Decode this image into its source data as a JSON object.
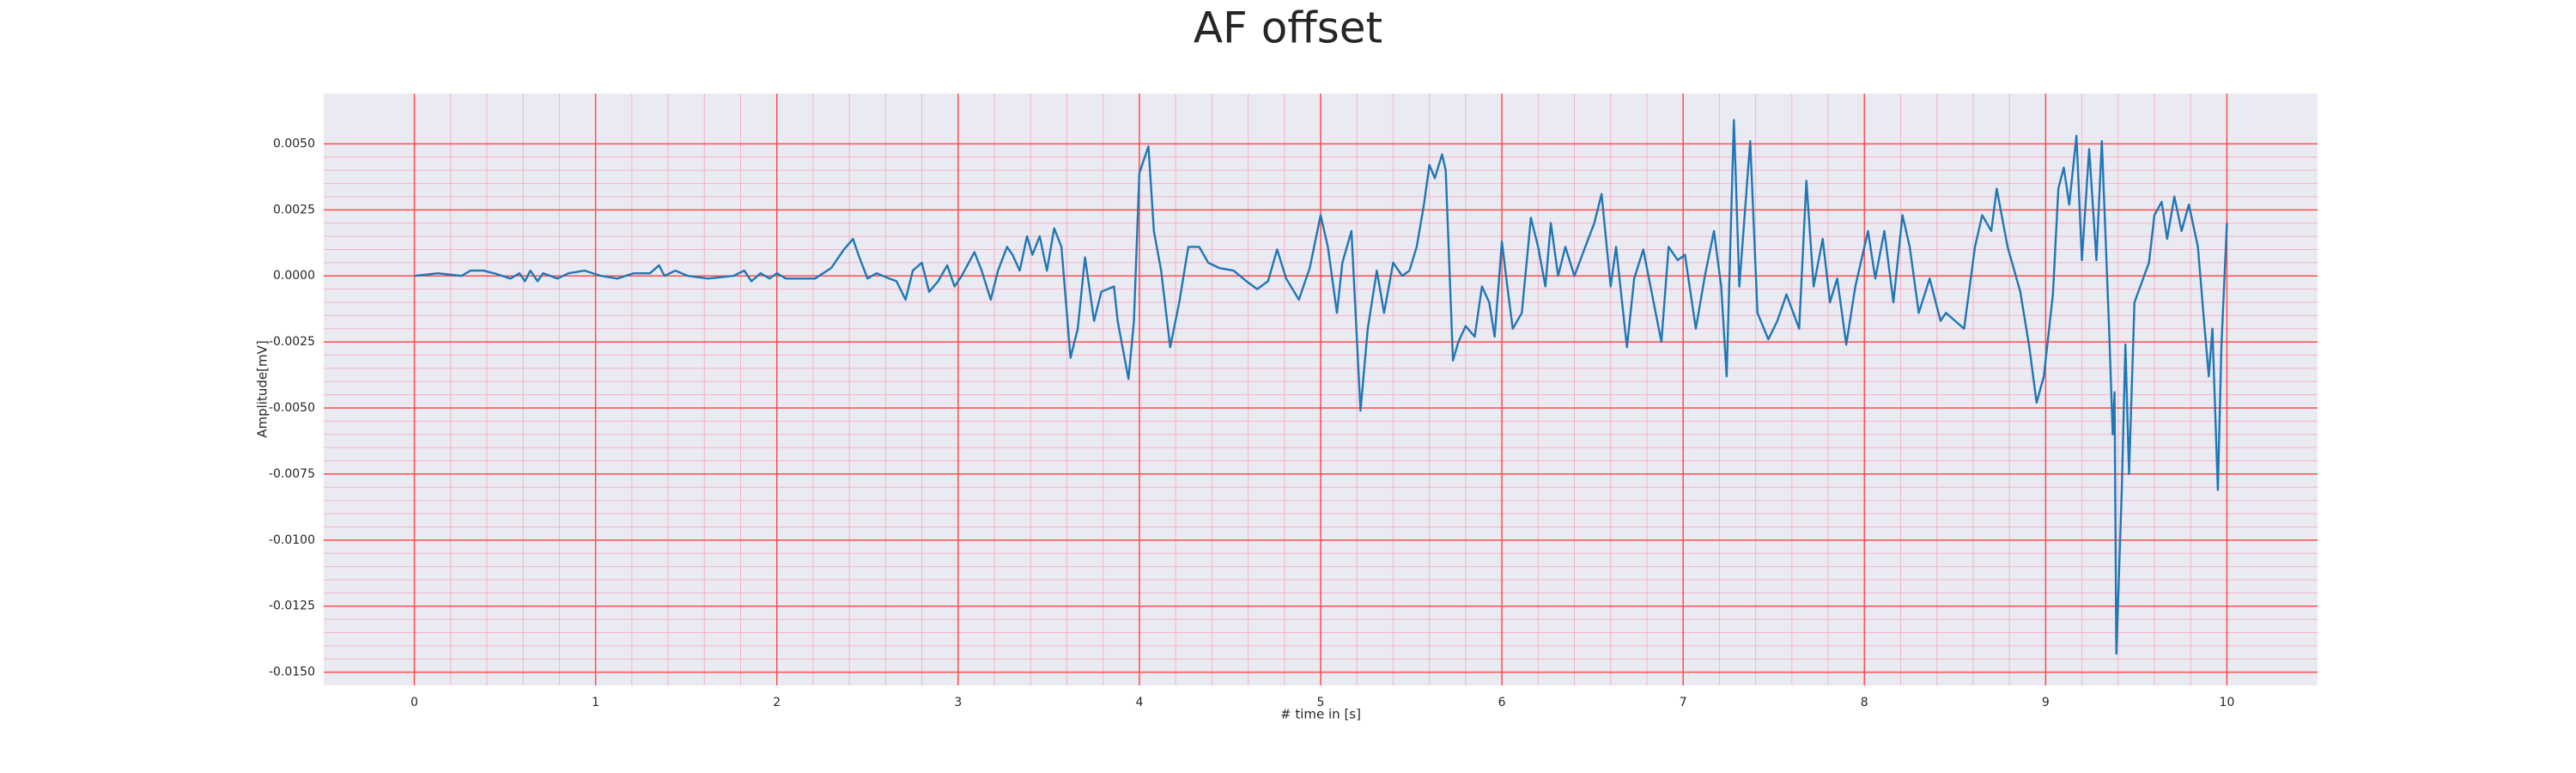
{
  "chart_data": {
    "type": "line",
    "title": "AF offset",
    "xlabel": "# time in [s]",
    "ylabel": "Amplitude[mV]",
    "xlim": [
      -0.5,
      10.5
    ],
    "ylim": [
      -0.0155,
      0.0069
    ],
    "xticks": [
      0,
      1,
      2,
      3,
      4,
      5,
      6,
      7,
      8,
      9,
      10
    ],
    "yticks": [
      {
        "value": 0.005,
        "label": "0.0050"
      },
      {
        "value": 0.0025,
        "label": "0.0025"
      },
      {
        "value": 0,
        "label": "0.0000"
      },
      {
        "value": -0.0025,
        "label": "-0.0025"
      },
      {
        "value": -0.005,
        "label": "-0.0050"
      },
      {
        "value": -0.0075,
        "label": "-0.0075"
      },
      {
        "value": -0.01,
        "label": "-0.0100"
      },
      {
        "value": -0.0125,
        "label": "-0.0125"
      },
      {
        "value": -0.015,
        "label": "-0.0150"
      }
    ],
    "grid": true,
    "minor_grid": true,
    "grid_color": "#ff4d4d",
    "minor_grid_color": "#f5b3c6",
    "background": "#eaeaf2",
    "x": [
      0,
      0.13,
      0.26,
      0.31,
      0.38,
      0.44,
      0.53,
      0.58,
      0.61,
      0.64,
      0.68,
      0.71,
      0.79,
      0.85,
      0.94,
      1.03,
      1.12,
      1.21,
      1.3,
      1.35,
      1.38,
      1.44,
      1.51,
      1.62,
      1.76,
      1.82,
      1.86,
      1.91,
      1.96,
      2.0,
      2.05,
      2.12,
      2.21,
      2.3,
      2.37,
      2.42,
      2.45,
      2.5,
      2.55,
      2.62,
      2.66,
      2.71,
      2.75,
      2.8,
      2.84,
      2.89,
      2.94,
      2.98,
      3.02,
      3.09,
      3.13,
      3.18,
      3.22,
      3.27,
      3.3,
      3.34,
      3.38,
      3.41,
      3.45,
      3.49,
      3.53,
      3.57,
      3.62,
      3.66,
      3.7,
      3.75,
      3.79,
      3.86,
      3.88,
      3.94,
      3.97,
      4.0,
      4.05,
      4.08,
      4.12,
      4.17,
      4.22,
      4.27,
      4.33,
      4.38,
      4.44,
      4.52,
      4.59,
      4.65,
      4.71,
      4.76,
      4.81,
      4.88,
      4.94,
      5.0,
      5.04,
      5.09,
      5.12,
      5.17,
      5.22,
      5.26,
      5.31,
      5.35,
      5.4,
      5.45,
      5.49,
      5.53,
      5.57,
      5.6,
      5.63,
      5.67,
      5.69,
      5.73,
      5.76,
      5.8,
      5.85,
      5.89,
      5.93,
      5.96,
      6.0,
      6.03,
      6.06,
      6.11,
      6.16,
      6.2,
      6.24,
      6.27,
      6.31,
      6.35,
      6.4,
      6.46,
      6.51,
      6.55,
      6.6,
      6.63,
      6.69,
      6.73,
      6.78,
      6.82,
      6.88,
      6.92,
      6.97,
      7.01,
      7.07,
      7.12,
      7.17,
      7.21,
      7.24,
      7.28,
      7.31,
      7.37,
      7.41,
      7.47,
      7.52,
      7.57,
      7.64,
      7.68,
      7.72,
      7.77,
      7.81,
      7.85,
      7.9,
      7.95,
      8.02,
      8.06,
      8.11,
      8.16,
      8.21,
      8.25,
      8.3,
      8.36,
      8.42,
      8.45,
      8.5,
      8.55,
      8.61,
      8.65,
      8.7,
      8.73,
      8.79,
      8.86,
      8.91,
      8.95,
      8.99,
      9.04,
      9.07,
      9.1,
      9.13,
      9.17,
      9.2,
      9.24,
      9.28,
      9.31,
      9.35,
      9.37,
      9.38,
      9.39,
      9.42,
      9.44,
      9.46,
      9.49,
      9.57,
      9.6,
      9.64,
      9.67,
      9.71,
      9.75,
      9.79,
      9.84,
      9.87,
      9.9,
      9.92,
      9.95,
      9.97,
      10.0
    ],
    "series": [
      {
        "name": "AF offset",
        "color": "#1f77b4",
        "values": [
          0,
          0.0001,
          0,
          0.0002,
          0.0002,
          0.0001,
          -0.0001,
          0.0001,
          -0.0002,
          0.0002,
          -0.0002,
          0.0001,
          -0.0001,
          0.0001,
          0.0002,
          0,
          -0.0001,
          0.0001,
          0.0001,
          0.0004,
          0,
          0.0002,
          0,
          -0.0001,
          0,
          0.0002,
          -0.0002,
          0.0001,
          -0.0001,
          0.0001,
          -0.0001,
          -0.0001,
          -0.0001,
          0.0003,
          0.001,
          0.0014,
          0.0008,
          -0.0001,
          0.0001,
          -0.0001,
          -0.0002,
          -0.0009,
          0.0002,
          0.0005,
          -0.0006,
          -0.0002,
          0.0004,
          -0.0004,
          0,
          0.0009,
          0.0002,
          -0.0009,
          0.0002,
          0.0011,
          0.0008,
          0.0002,
          0.0015,
          0.0008,
          0.0015,
          0.0002,
          0.0018,
          0.0011,
          -0.0031,
          -0.002,
          0.0007,
          -0.0017,
          -0.0006,
          -0.0004,
          -0.0017,
          -0.0039,
          -0.0017,
          0.0039,
          0.0049,
          0.0017,
          0.0002,
          -0.0027,
          -0.001,
          0.0011,
          0.0011,
          0.0005,
          0.0003,
          0.0002,
          -0.0002,
          -0.0005,
          -0.0002,
          0.001,
          -0.0001,
          -0.0009,
          0.0003,
          0.0023,
          0.0011,
          -0.0014,
          0.0005,
          0.0017,
          -0.0051,
          -0.002,
          0.0002,
          -0.0014,
          0.0005,
          0,
          0.0002,
          0.0011,
          0.0027,
          0.0042,
          0.0037,
          0.0046,
          0.004,
          -0.0032,
          -0.0025,
          -0.0019,
          -0.0023,
          -0.0004,
          -0.001,
          -0.0023,
          0.0013,
          -0.0004,
          -0.002,
          -0.0014,
          0.0022,
          0.0011,
          -0.0004,
          0.002,
          0,
          0.0011,
          0,
          0.0011,
          0.002,
          0.0031,
          -0.0004,
          0.0011,
          -0.0027,
          -0.0001,
          0.001,
          -0.0004,
          -0.0025,
          0.0011,
          0.0006,
          0.0008,
          -0.002,
          0,
          0.0017,
          -0.0004,
          -0.0038,
          0.0059,
          -0.0004,
          0.0051,
          -0.0014,
          -0.0024,
          -0.0017,
          -0.0007,
          -0.002,
          0.0036,
          -0.0004,
          0.0014,
          -0.001,
          -0.0001,
          -0.0026,
          -0.0004,
          0.0017,
          -0.0001,
          0.0017,
          -0.001,
          0.0023,
          0.0011,
          -0.0014,
          -0.0001,
          -0.0017,
          -0.0014,
          -0.0017,
          -0.002,
          0.0011,
          0.0023,
          0.0017,
          0.0033,
          0.0011,
          -0.0006,
          -0.0027,
          -0.0048,
          -0.0038,
          -0.0007,
          0.0033,
          0.0041,
          0.0027,
          0.0053,
          0.0006,
          0.0048,
          0.0006,
          0.0051,
          -0.002,
          -0.006,
          -0.0044,
          -0.0143,
          -0.0081,
          -0.0026,
          -0.0075,
          -0.001,
          0.0005,
          0.0023,
          0.0028,
          0.0014,
          0.003,
          0.0017,
          0.0027,
          0.0011,
          -0.0014,
          -0.0038,
          -0.002,
          -0.0081,
          -0.0026,
          0.002
        ]
      }
    ]
  }
}
